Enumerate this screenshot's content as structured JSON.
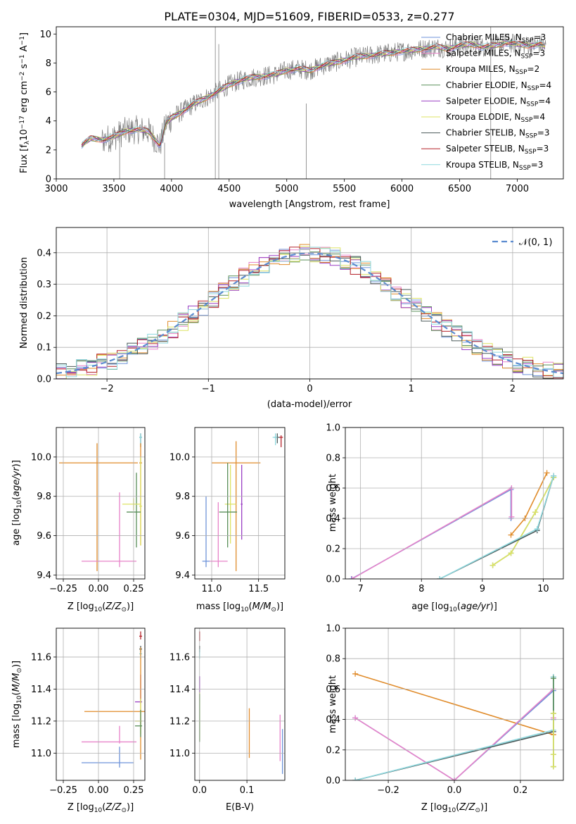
{
  "chart_data": [
    {
      "type": "line",
      "title": "PLATE=0304, MJD=51609, FIBERID=0533, z=0.277",
      "xlabel": "wavelength [Angstrom, rest frame]",
      "ylabel": "Flux [f",
      "ylabel_full": "Flux [f_λ 10^-17 erg cm^-2 s^-1 A^-1]",
      "xlim": [
        3000,
        7400
      ],
      "ylim": [
        0,
        10.5
      ],
      "xticks": [
        "3000",
        "3500",
        "4000",
        "4500",
        "5000",
        "5500",
        "6000",
        "6500",
        "7000"
      ],
      "yticks": [
        "0",
        "2",
        "4",
        "6",
        "8",
        "10"
      ],
      "legend_position": "upper-right",
      "grid": false,
      "series": [
        {
          "name": "Chabrier MILES, N",
          "sub": "SSP",
          "suffix": "=3",
          "color": "#6e93d9"
        },
        {
          "name": "Salpeter MILES, N",
          "sub": "SSP",
          "suffix": "=3",
          "color": "#e783c9"
        },
        {
          "name": "Kroupa MILES, N",
          "sub": "SSP",
          "suffix": "=2",
          "color": "#e08b2a"
        },
        {
          "name": "Chabrier ELODIE, N",
          "sub": "SSP",
          "suffix": "=4",
          "color": "#5a8f5a"
        },
        {
          "name": "Salpeter ELODIE, N",
          "sub": "SSP",
          "suffix": "=4",
          "color": "#9b3fc4"
        },
        {
          "name": "Kroupa ELODIE, N",
          "sub": "SSP",
          "suffix": "=4",
          "color": "#dde363"
        },
        {
          "name": "Chabrier STELIB, N",
          "sub": "SSP",
          "suffix": "=3",
          "color": "#4b5a5a"
        },
        {
          "name": "Salpeter STELIB, N",
          "sub": "SSP",
          "suffix": "=3",
          "color": "#b5222a"
        },
        {
          "name": "Kroupa STELIB, N",
          "sub": "SSP",
          "suffix": "=3",
          "color": "#8ed8de"
        }
      ],
      "model_anchor": {
        "x": [
          3220,
          3300,
          3400,
          3500,
          3600,
          3700,
          3800,
          3900,
          3950,
          4000,
          4100,
          4200,
          4300,
          4400,
          4500,
          4600,
          4700,
          4800,
          4900,
          5000,
          5100,
          5200,
          5300,
          5400,
          5500,
          5600,
          5700,
          5800,
          5900,
          6000,
          6100,
          6200,
          6300,
          6400,
          6500,
          6600,
          6700,
          6800,
          6900,
          7000,
          7100,
          7200,
          7250
        ],
        "y": [
          2.3,
          2.8,
          2.7,
          2.9,
          3.3,
          3.4,
          3.3,
          2.3,
          3.8,
          4.2,
          4.7,
          5.2,
          5.6,
          6.0,
          6.5,
          6.8,
          7.0,
          7.1,
          7.2,
          7.5,
          7.6,
          7.5,
          7.8,
          8.0,
          8.2,
          8.4,
          8.5,
          8.6,
          8.7,
          8.8,
          8.9,
          9.0,
          9.1,
          9.0,
          9.2,
          9.3,
          9.1,
          9.2,
          9.4,
          9.3,
          9.2,
          9.3,
          9.1
        ]
      }
    },
    {
      "type": "line",
      "xlabel": "(data-model)/error",
      "ylabel": "Normed distribution",
      "xlim": [
        -2.5,
        2.5
      ],
      "ylim": [
        0,
        0.48
      ],
      "xticks": [
        "−2",
        "−1",
        "0",
        "1",
        "2"
      ],
      "yticks": [
        "0.0",
        "0.1",
        "0.2",
        "0.3",
        "0.4"
      ],
      "grid": true,
      "legend": "N(0,1)",
      "legend_position": "upper-right",
      "reference_curve": {
        "name": "N(0,1)",
        "mean": 0,
        "sigma": 1,
        "color": "#5b8bd0"
      },
      "histograms": {
        "bin_width": 0.1,
        "series_colors_from": "chart_data.0.series"
      }
    },
    {
      "type": "scatter",
      "xlabel": "Z [log",
      "ylabel": "age  [log",
      "xlim": [
        -0.3,
        0.33
      ],
      "ylim": [
        9.38,
        10.15
      ],
      "xticks": [
        "−0.25",
        "0.00",
        "0.25"
      ],
      "yticks": [
        "9.4",
        "9.6",
        "9.8",
        "10.0"
      ],
      "grid": true,
      "points": [
        {
          "x": 0.3,
          "xerr": [
            0.01,
            0.01
          ],
          "y": 10.1,
          "yerr": [
            0.05,
            0.02
          ],
          "color": "#4b5a5a"
        },
        {
          "x": 0.3,
          "xerr": [
            0.01,
            0.01
          ],
          "y": 10.1,
          "yerr": [
            0.04,
            0.02
          ],
          "color": "#8ed8de"
        },
        {
          "x": 0.3,
          "xerr": [
            0.01,
            0.01
          ],
          "y": 9.97,
          "yerr": [
            0.42,
            0.1
          ],
          "color": "#e08b2a"
        },
        {
          "x": 0.3,
          "xerr": [
            0.01,
            0.01
          ],
          "y": 9.75,
          "yerr": [
            0.2,
            0.25
          ],
          "color": "#dde363"
        },
        {
          "x": 0.27,
          "xerr": [
            0.07,
            0.03
          ],
          "y": 9.72,
          "yerr": [
            0.18,
            0.2
          ],
          "color": "#5a8f5a"
        },
        {
          "x": -0.01,
          "xerr": [
            0.27,
            0.29
          ],
          "y": 9.97,
          "yerr": [
            0.55,
            0.1
          ],
          "color": "#e08b2a"
        },
        {
          "x": 0.15,
          "xerr": [
            0.27,
            0.12
          ],
          "y": 9.47,
          "yerr": [
            0.03,
            0.35
          ],
          "color": "#e783c9"
        },
        {
          "x": 0.25,
          "xerr": [
            0.08,
            0.05
          ],
          "y": 9.76,
          "yerr": [
            0.03,
            0.03
          ],
          "color": "#dde363"
        }
      ]
    },
    {
      "type": "scatter",
      "xlabel": "mass [log",
      "xlim": [
        10.82,
        11.78
      ],
      "ylim": [
        9.38,
        10.15
      ],
      "xticks": [
        "11.0",
        "11.5"
      ],
      "yticks": [
        "9.4",
        "9.6",
        "9.8",
        "10.0"
      ],
      "grid": true,
      "points": [
        {
          "x": 11.7,
          "xerr": [
            0.03,
            0.02
          ],
          "y": 10.1,
          "yerr": [
            0.03,
            0.02
          ],
          "color": "#4b5a5a"
        },
        {
          "x": 11.74,
          "xerr": [
            0.02,
            0.02
          ],
          "y": 10.1,
          "yerr": [
            0.05,
            0.01
          ],
          "color": "#b5222a"
        },
        {
          "x": 11.68,
          "xerr": [
            0.03,
            0.02
          ],
          "y": 10.1,
          "yerr": [
            0.04,
            0.02
          ],
          "color": "#8ed8de"
        },
        {
          "x": 11.26,
          "xerr": [
            0.26,
            0.26
          ],
          "y": 9.97,
          "yerr": [
            0.55,
            0.11
          ],
          "color": "#e08b2a"
        },
        {
          "x": 11.32,
          "xerr": [
            0.01,
            0.01
          ],
          "y": 9.76,
          "yerr": [
            0.18,
            0.2
          ],
          "color": "#9b3fc4"
        },
        {
          "x": 11.2,
          "xerr": [
            0.06,
            0.06
          ],
          "y": 9.76,
          "yerr": [
            0.2,
            0.2
          ],
          "color": "#dde363"
        },
        {
          "x": 11.17,
          "xerr": [
            0.09,
            0.1
          ],
          "y": 9.72,
          "yerr": [
            0.18,
            0.25
          ],
          "color": "#5a8f5a"
        },
        {
          "x": 10.94,
          "xerr": [
            0.04,
            0.04
          ],
          "y": 9.47,
          "yerr": [
            0.03,
            0.33
          ],
          "color": "#6e93d9"
        },
        {
          "x": 11.07,
          "xerr": [
            0.09,
            0.1
          ],
          "y": 9.47,
          "yerr": [
            0.03,
            0.3
          ],
          "color": "#e783c9"
        }
      ]
    },
    {
      "type": "line",
      "xlabel": "age  [log",
      "ylabel": "mass weight",
      "xlim": [
        6.75,
        10.33
      ],
      "ylim": [
        0,
        1.0
      ],
      "xticks": [
        "7",
        "8",
        "9",
        "10"
      ],
      "yticks": [
        "0.0",
        "0.2",
        "0.4",
        "0.6",
        "0.8",
        "1.0"
      ],
      "grid": true,
      "series": [
        {
          "color": "#6e93d9",
          "x": [
            6.85,
            9.47,
            9.47
          ],
          "y": [
            0.0,
            0.59,
            0.4
          ]
        },
        {
          "color": "#e783c9",
          "x": [
            6.86,
            9.48,
            9.48
          ],
          "y": [
            0.0,
            0.6,
            0.41
          ]
        },
        {
          "color": "#e08b2a",
          "x": [
            9.47,
            9.7,
            10.06
          ],
          "y": [
            0.29,
            0.4,
            0.7
          ]
        },
        {
          "color": "#5a8f5a",
          "x": [
            9.17,
            9.47,
            9.87,
            10.17
          ],
          "y": [
            0.09,
            0.17,
            0.44,
            0.67
          ]
        },
        {
          "color": "#dde363",
          "x": [
            9.17,
            9.47,
            9.87,
            10.17
          ],
          "y": [
            0.09,
            0.17,
            0.44,
            0.67
          ]
        },
        {
          "color": "#4b5a5a",
          "x": [
            8.3,
            9.9,
            10.17
          ],
          "y": [
            0.0,
            0.32,
            0.68
          ]
        },
        {
          "color": "#8ed8de",
          "x": [
            8.3,
            9.9,
            10.17
          ],
          "y": [
            0.0,
            0.33,
            0.68
          ]
        }
      ]
    },
    {
      "type": "scatter",
      "xlabel": "Z [log",
      "ylabel": "mass [log",
      "xlim": [
        -0.3,
        0.33
      ],
      "ylim": [
        10.83,
        11.78
      ],
      "xticks": [
        "−0.25",
        "0.00",
        "0.25"
      ],
      "yticks": [
        "11.0",
        "11.2",
        "11.4",
        "11.6"
      ],
      "grid": true,
      "points": [
        {
          "x": 0.3,
          "xerr": [
            0.01,
            0.01
          ],
          "y": 11.73,
          "yerr": [
            0.02,
            0.03
          ],
          "color": "#b5222a"
        },
        {
          "x": 0.3,
          "xerr": [
            0.01,
            0.01
          ],
          "y": 11.65,
          "yerr": [
            0.02,
            0.02
          ],
          "color": "#4b5a5a"
        },
        {
          "x": 0.3,
          "xerr": [
            0.01,
            0.01
          ],
          "y": 11.62,
          "yerr": [
            0.03,
            0.03
          ],
          "color": "#8ed8de"
        },
        {
          "x": 0.3,
          "xerr": [
            0.04,
            0.01
          ],
          "y": 11.32,
          "yerr": [
            0.01,
            0.17
          ],
          "color": "#9b3fc4"
        },
        {
          "x": 0.3,
          "xerr": [
            0.4,
            0.3
          ],
          "y": 11.26,
          "yerr": [
            0.3,
            0.4
          ],
          "color": "#e08b2a"
        },
        {
          "x": 0.3,
          "xerr": [
            0.04,
            0.01
          ],
          "y": 11.2,
          "yerr": [
            0.08,
            0.14
          ],
          "color": "#dde363"
        },
        {
          "x": 0.3,
          "xerr": [
            0.04,
            0.01
          ],
          "y": 11.17,
          "yerr": [
            0.07,
            0.1
          ],
          "color": "#5a8f5a"
        },
        {
          "x": 0.15,
          "xerr": [
            0.27,
            0.12
          ],
          "y": 11.07,
          "yerr": [
            0.01,
            0.1
          ],
          "color": "#e783c9"
        },
        {
          "x": 0.15,
          "xerr": [
            0.27,
            0.1
          ],
          "y": 10.94,
          "yerr": [
            0.03,
            0.1
          ],
          "color": "#6e93d9"
        }
      ]
    },
    {
      "type": "scatter",
      "xlabel": "E(B-V)",
      "xlim": [
        -0.01,
        0.18
      ],
      "ylim": [
        10.83,
        11.78
      ],
      "xticks": [
        "0.0",
        "0.1"
      ],
      "yticks": [
        "11.0",
        "11.2",
        "11.4",
        "11.6"
      ],
      "grid": true,
      "points": [
        {
          "x": 0.0,
          "y": 11.73,
          "yerr": [
            0.03,
            0.03
          ],
          "color": "#b5222a"
        },
        {
          "x": 0.0,
          "y": 11.65,
          "yerr": [
            0.02,
            0.02
          ],
          "color": "#4b5a5a"
        },
        {
          "x": 0.0,
          "y": 11.62,
          "yerr": [
            0.03,
            0.03
          ],
          "color": "#8ed8de"
        },
        {
          "x": 0.0,
          "y": 11.4,
          "yerr": [
            0.08,
            0.08
          ],
          "color": "#9b3fc4"
        },
        {
          "x": 0.0,
          "y": 11.2,
          "yerr": [
            0.12,
            0.18
          ],
          "color": "#dde363"
        },
        {
          "x": 0.0,
          "y": 11.17,
          "yerr": [
            0.1,
            0.2
          ],
          "color": "#5a8f5a"
        },
        {
          "x": 0.105,
          "y": 11.14,
          "yerr": [
            0.17,
            0.14
          ],
          "color": "#e08b2a"
        },
        {
          "x": 0.17,
          "y": 11.07,
          "yerr": [
            0.12,
            0.17
          ],
          "color": "#e783c9"
        },
        {
          "x": 0.175,
          "y": 10.99,
          "yerr": [
            0.12,
            0.16
          ],
          "color": "#6e93d9"
        }
      ]
    },
    {
      "type": "line",
      "xlabel": "Z [log",
      "ylabel": "mass weight",
      "xlim": [
        -0.33,
        0.33
      ],
      "ylim": [
        0,
        1.0
      ],
      "xticks": [
        "−0.2",
        "0.0",
        "0.2"
      ],
      "yticks": [
        "0.0",
        "0.2",
        "0.4",
        "0.6",
        "0.8",
        "1.0"
      ],
      "grid": true,
      "series": [
        {
          "color": "#e08b2a",
          "x": [
            -0.3,
            0.3
          ],
          "y": [
            0.7,
            0.3
          ]
        },
        {
          "color": "#6e93d9",
          "x": [
            -0.3,
            0.0,
            0.3,
            0.3
          ],
          "y": [
            0.41,
            0.0,
            0.59,
            0.4
          ]
        },
        {
          "color": "#e783c9",
          "x": [
            -0.3,
            0.0,
            0.3,
            0.3
          ],
          "y": [
            0.41,
            0.0,
            0.6,
            0.41
          ]
        },
        {
          "color": "#4b5a5a",
          "x": [
            -0.3,
            0.3,
            0.3
          ],
          "y": [
            0.0,
            0.32,
            0.68
          ]
        },
        {
          "color": "#8ed8de",
          "x": [
            -0.3,
            0.3,
            0.3
          ],
          "y": [
            0.0,
            0.33,
            0.68
          ]
        },
        {
          "color": "#5a8f5a",
          "x": [
            0.3,
            0.3,
            0.3,
            0.3
          ],
          "y": [
            0.09,
            0.17,
            0.44,
            0.67
          ]
        },
        {
          "color": "#dde363",
          "x": [
            0.3,
            0.3,
            0.3
          ],
          "y": [
            0.09,
            0.17,
            0.44
          ]
        }
      ]
    }
  ],
  "labels": {
    "sun_sub": "⊙",
    "xlabel_z_tail": ")]",
    "age_unit": "(age/yr)",
    "mass_unit": "(M/M",
    "mass_tail": ")]",
    "log_sub": "10",
    "flux_f_sub": "λ",
    "flux_rest": "10",
    "flux_exp": "−17",
    "flux_units": " erg cm",
    "flux_exp2": "−2",
    "flux_s": " s",
    "flux_exp3": "−1",
    "flux_A": " A",
    "flux_exp4": "−1",
    "flux_close": "]",
    "normal_label": "𝒩(0, 1)"
  }
}
